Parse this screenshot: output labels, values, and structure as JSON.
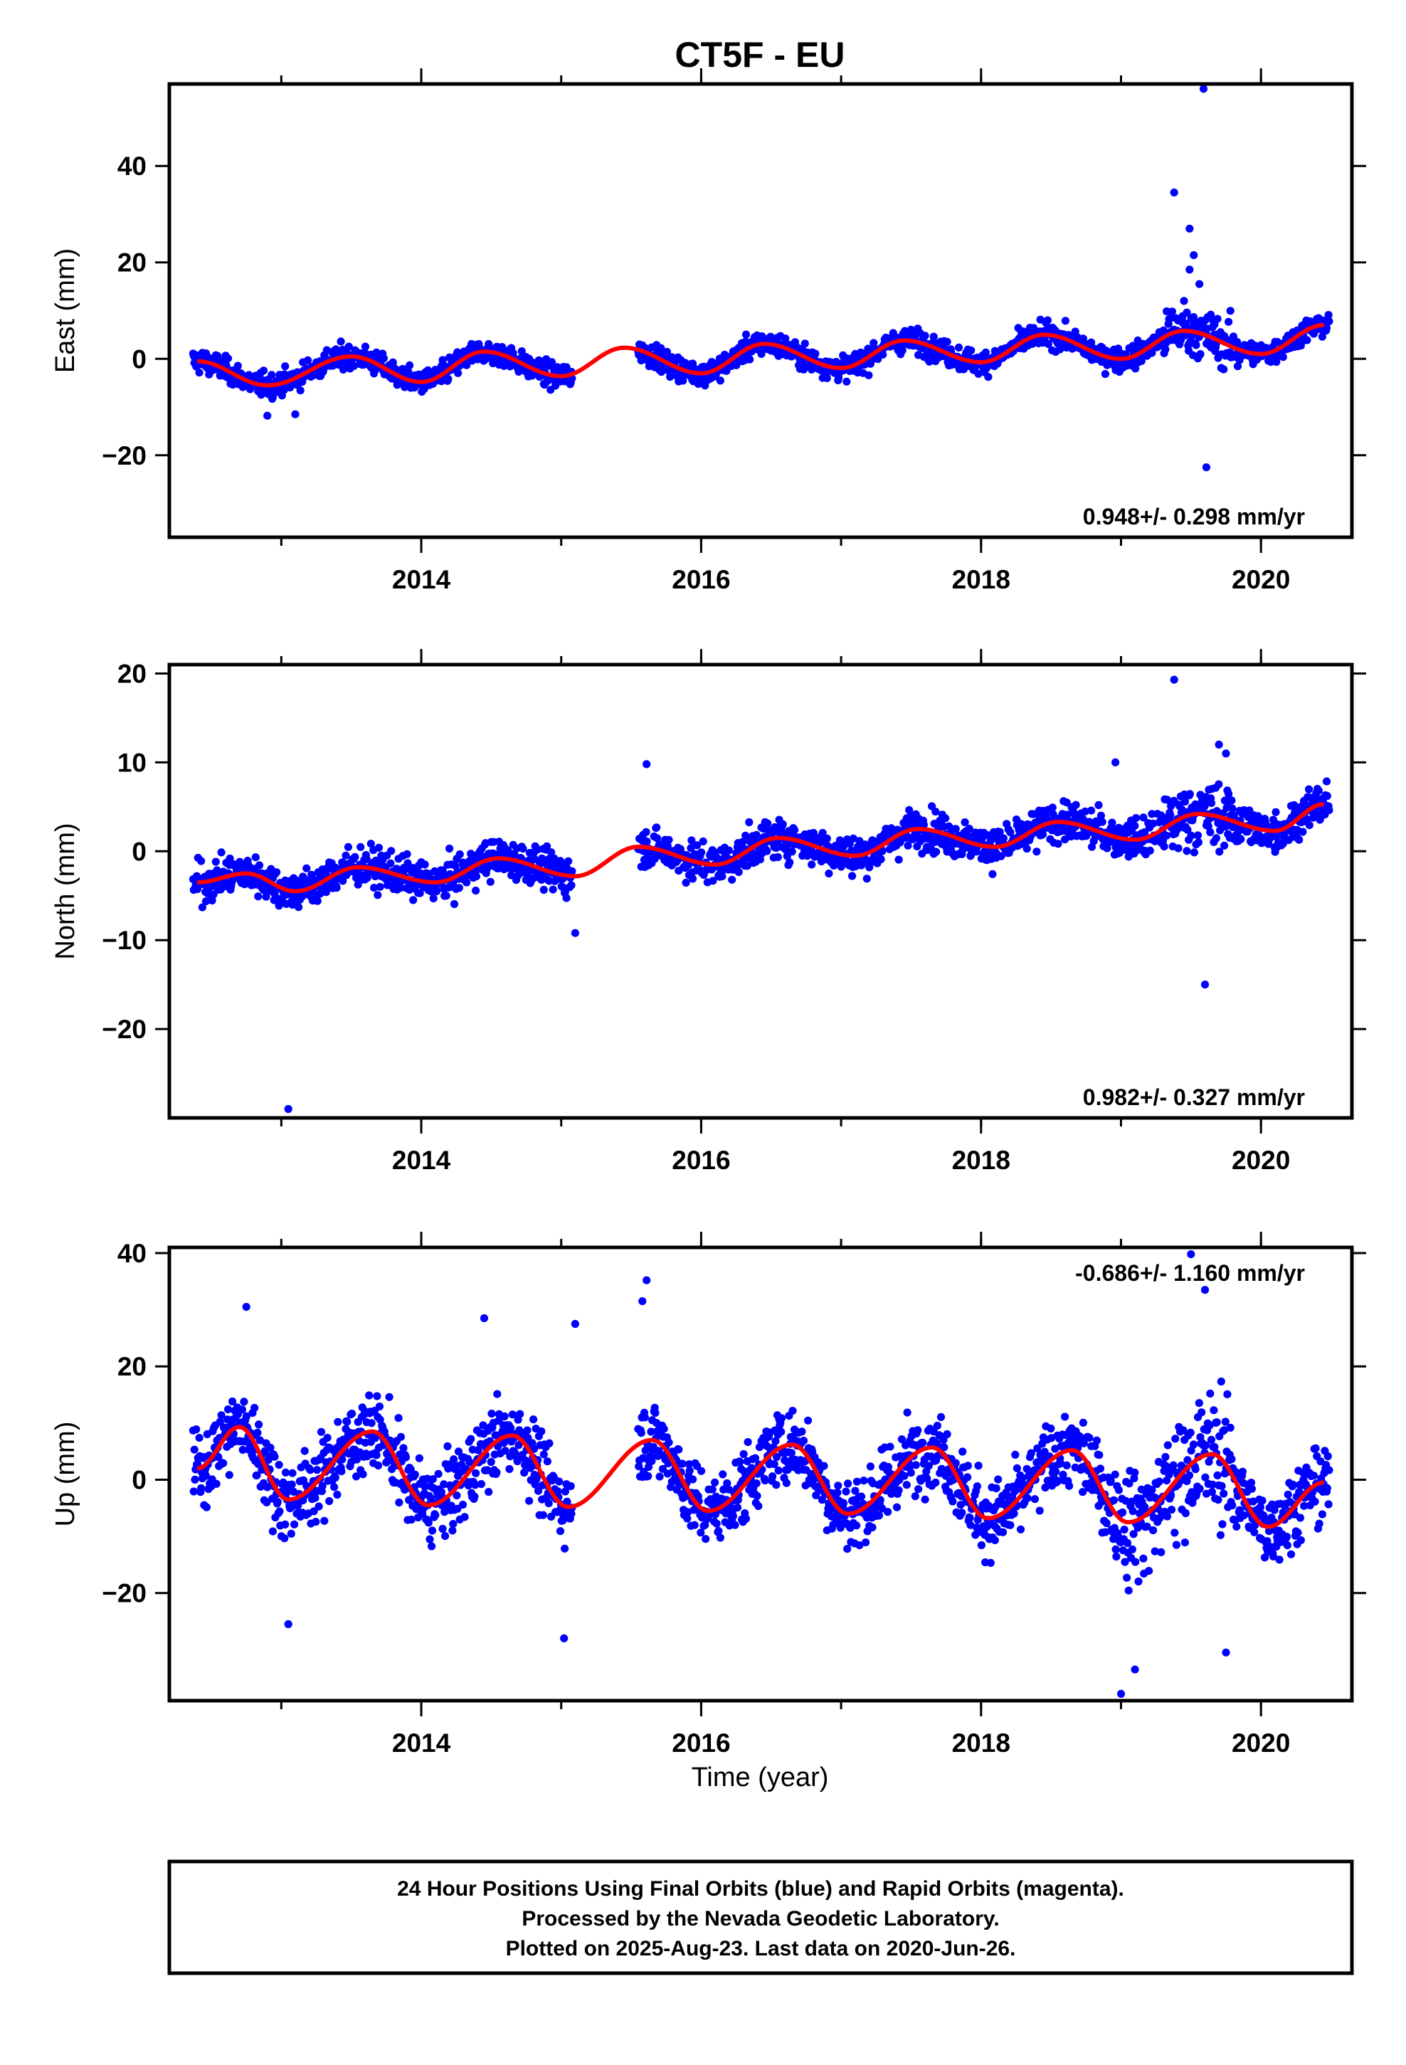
{
  "title": "CT5F - EU",
  "colors": {
    "final": "#0000ff",
    "model": "#ff0000",
    "frame": "#000000"
  },
  "chart_data": [
    {
      "type": "scatter",
      "panel": "east",
      "ylabel": "East (mm)",
      "xlabel": "",
      "xlim": [
        2012.2,
        2020.65
      ],
      "ylim": [
        -37,
        57
      ],
      "xticks": [
        2014,
        2016,
        2018,
        2020
      ],
      "xtick_labels": [
        "2014",
        "2016",
        "2018",
        "2020"
      ],
      "yticks": [
        -20,
        0,
        20,
        40
      ],
      "ytick_labels": [
        "−20",
        "0",
        "20",
        "40"
      ],
      "rate_text": "0.948+/- 0.298 mm/yr",
      "rate_position": "bottom-right",
      "series": [
        {
          "role": "daily-positions",
          "color": "#0000ff",
          "segments": [
            [
              2012.37,
              2015.08
            ],
            [
              2015.55,
              2020.49
            ]
          ],
          "noise_mm": 2.0,
          "sparse_from": 2019.3,
          "sparse_to": 2019.85,
          "sparse_noise_mm": 4.0
        },
        {
          "role": "model",
          "color": "#ff0000",
          "x": [
            2012.4,
            2012.9,
            2013.5,
            2014.0,
            2014.45,
            2015.0,
            2015.45,
            2016.0,
            2016.45,
            2017.0,
            2017.45,
            2018.0,
            2018.45,
            2019.0,
            2019.45,
            2020.0,
            2020.45
          ],
          "y": [
            -0.5,
            -5.5,
            0.5,
            -4.8,
            1.5,
            -3.6,
            2.3,
            -3.0,
            3.1,
            -1.9,
            3.8,
            -0.7,
            5.0,
            0.0,
            5.8,
            1.0,
            7.0
          ]
        },
        {
          "role": "outliers",
          "color": "#0000ff",
          "x": [
            2019.38,
            2019.49,
            2019.52,
            2019.56,
            2019.59,
            2019.61,
            2012.9,
            2013.1,
            2019.49,
            2019.45
          ],
          "y": [
            34.5,
            27.0,
            21.5,
            15.5,
            56.0,
            -22.5,
            -11.8,
            -11.5,
            18.5,
            12.0
          ]
        }
      ]
    },
    {
      "type": "scatter",
      "panel": "north",
      "ylabel": "North (mm)",
      "xlabel": "",
      "xlim": [
        2012.2,
        2020.65
      ],
      "ylim": [
        -30,
        21
      ],
      "xticks": [
        2014,
        2016,
        2018,
        2020
      ],
      "xtick_labels": [
        "2014",
        "2016",
        "2018",
        "2020"
      ],
      "yticks": [
        -20,
        -10,
        0,
        10,
        20
      ],
      "ytick_labels": [
        "−20",
        "−10",
        "0",
        "10",
        "20"
      ],
      "rate_text": "0.982+/- 0.327 mm/yr",
      "rate_position": "bottom-right",
      "series": [
        {
          "role": "daily-positions",
          "color": "#0000ff",
          "segments": [
            [
              2012.37,
              2015.08
            ],
            [
              2015.55,
              2020.49
            ]
          ],
          "noise_mm": 1.8,
          "sparse_from": 2019.3,
          "sparse_to": 2019.85,
          "sparse_noise_mm": 3.0
        },
        {
          "role": "model",
          "color": "#ff0000",
          "x": [
            2012.4,
            2012.75,
            2013.1,
            2013.55,
            2014.1,
            2014.55,
            2015.1,
            2015.55,
            2016.1,
            2016.55,
            2017.1,
            2017.55,
            2018.1,
            2018.55,
            2019.1,
            2019.55,
            2020.1,
            2020.45
          ],
          "y": [
            -3.5,
            -2.5,
            -4.5,
            -1.8,
            -3.5,
            -0.8,
            -2.8,
            0.5,
            -1.5,
            1.5,
            -0.5,
            2.5,
            0.5,
            3.3,
            1.3,
            4.2,
            2.3,
            5.3
          ]
        },
        {
          "role": "outliers",
          "color": "#0000ff",
          "x": [
            2013.05,
            2019.38,
            2019.6,
            2015.61,
            2015.1,
            2018.96,
            2019.7,
            2019.75
          ],
          "y": [
            -29.0,
            19.3,
            -15.0,
            9.8,
            -9.2,
            10.0,
            12.0,
            11.0
          ]
        }
      ]
    },
    {
      "type": "scatter",
      "panel": "up",
      "ylabel": "Up (mm)",
      "xlabel": "Time (year)",
      "xlim": [
        2012.2,
        2020.65
      ],
      "ylim": [
        -39,
        41
      ],
      "xticks": [
        2014,
        2016,
        2018,
        2020
      ],
      "xtick_labels": [
        "2014",
        "2016",
        "2018",
        "2020"
      ],
      "yticks": [
        -20,
        0,
        20,
        40
      ],
      "ytick_labels": [
        "−20",
        "0",
        "20",
        "40"
      ],
      "rate_text": "-0.686+/- 1.160 mm/yr",
      "rate_position": "top-right",
      "series": [
        {
          "role": "daily-positions",
          "color": "#0000ff",
          "segments": [
            [
              2012.37,
              2015.08
            ],
            [
              2015.55,
              2020.49
            ]
          ],
          "noise_mm": 5.5,
          "sparse_from": 2019.0,
          "sparse_to": 2019.85,
          "sparse_noise_mm": 9.0
        },
        {
          "role": "model",
          "color": "#ff0000",
          "x": [
            2012.4,
            2012.7,
            2013.05,
            2013.65,
            2014.05,
            2014.65,
            2015.05,
            2015.65,
            2016.05,
            2016.65,
            2017.05,
            2017.65,
            2018.05,
            2018.65,
            2019.05,
            2019.65,
            2020.05,
            2020.45
          ],
          "y": [
            2.0,
            9.3,
            -3.5,
            8.5,
            -4.5,
            7.8,
            -4.8,
            7.0,
            -5.5,
            6.2,
            -6.0,
            5.7,
            -6.8,
            5.2,
            -7.5,
            4.5,
            -8.3,
            -0.5
          ]
        },
        {
          "role": "outliers",
          "color": "#0000ff",
          "x": [
            2019.0,
            2019.5,
            2019.1,
            2015.61,
            2015.58,
            2015.02,
            2015.1,
            2013.05,
            2012.75,
            2014.45,
            2019.75,
            2019.6
          ],
          "y": [
            -37.8,
            39.8,
            -33.5,
            35.2,
            31.5,
            -28.0,
            27.5,
            -25.5,
            30.5,
            28.5,
            -30.5,
            33.5
          ]
        }
      ]
    }
  ],
  "footer": {
    "line1": "24 Hour Positions Using Final Orbits (blue) and Rapid Orbits (magenta).",
    "line2": "Processed by the Nevada Geodetic Laboratory.",
    "line3": "Plotted on 2025-Aug-23. Last data on 2020-Jun-26."
  }
}
